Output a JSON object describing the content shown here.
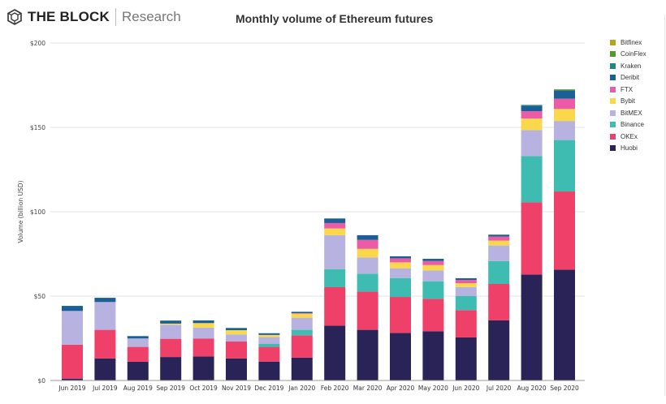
{
  "header": {
    "brand_name": "THE BLOCK",
    "brand_sub": "Research"
  },
  "chart_data": {
    "type": "bar",
    "stacked": true,
    "title": "Monthly volume of Ethereum futures",
    "xlabel": "",
    "ylabel": "Volume (billion USD)",
    "ylim": [
      0,
      200
    ],
    "yticks": [
      0,
      50,
      100,
      150,
      200
    ],
    "ytick_labels": [
      "$0",
      "$50",
      "$100",
      "$150",
      "$200"
    ],
    "grid": true,
    "legend_position": "right",
    "categories": [
      "Jun 2019",
      "Jul 2019",
      "Aug 2019",
      "Sep 2019",
      "Oct 2019",
      "Nov 2019",
      "Dec 2019",
      "Jan 2020",
      "Feb 2020",
      "Mar 2020",
      "Apr 2020",
      "May 2020",
      "Jun 2020",
      "Jul 2020",
      "Aug 2020",
      "Sep 2020"
    ],
    "series": [
      {
        "name": "Huobi",
        "color": "#2a2358",
        "values": [
          1.1,
          13.1,
          11.1,
          13.9,
          14.3,
          13.1,
          11.2,
          13.5,
          32.5,
          30.0,
          28.2,
          29.2,
          25.5,
          35.6,
          62.8,
          65.7
        ]
      },
      {
        "name": "OKEx",
        "color": "#ef4069",
        "values": [
          20.1,
          16.9,
          8.8,
          10.8,
          10.6,
          10.0,
          8.7,
          13.3,
          22.8,
          22.7,
          21.3,
          19.2,
          16.2,
          21.6,
          42.8,
          46.3
        ]
      },
      {
        "name": "Binance",
        "color": "#3fbcb1",
        "values": [
          0,
          0,
          0,
          0,
          0,
          0,
          1.9,
          3.2,
          10.7,
          10.6,
          11.2,
          10.4,
          8.3,
          13.6,
          27.4,
          30.5
        ]
      },
      {
        "name": "BitMEX",
        "color": "#b7b2df",
        "values": [
          20.0,
          16.5,
          5.0,
          8.3,
          6.4,
          4.2,
          3.9,
          7.2,
          20.1,
          9.6,
          5.8,
          6.4,
          5.4,
          9.2,
          15.4,
          11.3
        ]
      },
      {
        "name": "Bybit",
        "color": "#fbd84b",
        "values": [
          0,
          0,
          0,
          0.7,
          2.7,
          2.5,
          1.3,
          2.4,
          4.0,
          5.1,
          3.5,
          3.2,
          2.3,
          2.9,
          6.8,
          7.1
        ]
      },
      {
        "name": "FTX",
        "color": "#ec5ba6",
        "values": [
          0,
          0,
          0,
          0,
          0,
          0,
          0,
          0.3,
          3.2,
          5.3,
          2.4,
          2.4,
          1.9,
          2.4,
          4.4,
          6.1
        ]
      },
      {
        "name": "Deribit",
        "color": "#1a5f96",
        "values": [
          3.0,
          2.5,
          1.4,
          1.8,
          1.6,
          1.3,
          1.0,
          0.8,
          2.7,
          2.8,
          1.2,
          1.3,
          1.0,
          1.1,
          3.2,
          4.8
        ]
      },
      {
        "name": "Kraken",
        "color": "#1e8a78",
        "values": [
          0,
          0,
          0,
          0,
          0,
          0,
          0,
          0,
          0,
          0,
          0,
          0,
          0,
          0,
          0.5,
          0.5
        ]
      },
      {
        "name": "CoinFlex",
        "color": "#4e9a2a",
        "values": [
          0,
          0,
          0,
          0,
          0,
          0,
          0,
          0,
          0,
          0,
          0,
          0,
          0,
          0,
          0,
          0.2
        ]
      },
      {
        "name": "Bitfinex",
        "color": "#b9a21d",
        "values": [
          0,
          0,
          0,
          0,
          0,
          0,
          0,
          0,
          0,
          0,
          0,
          0,
          0,
          0,
          0,
          0.1
        ]
      }
    ],
    "legend_order": [
      "Bitfinex",
      "CoinFlex",
      "Kraken",
      "Deribit",
      "FTX",
      "Bybit",
      "BitMEX",
      "Binance",
      "OKEx",
      "Huobi"
    ]
  }
}
